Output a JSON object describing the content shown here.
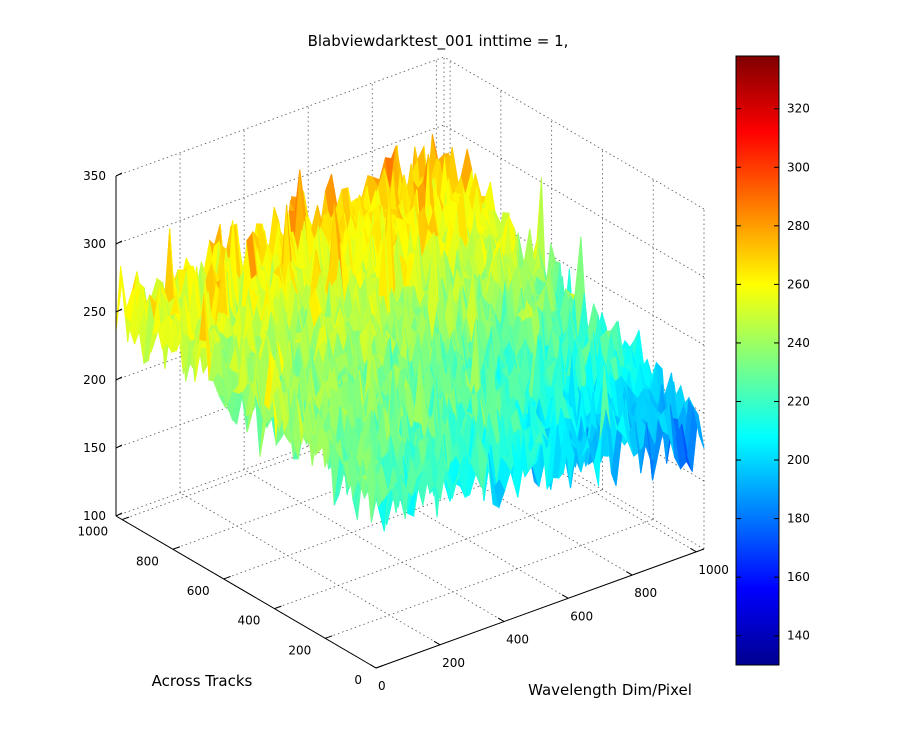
{
  "chart_data": {
    "type": "surface",
    "title": "Blabviewdarktest_001 inttime = 1,",
    "xlabel": "Wavelength Dim/Pixel",
    "ylabel": "Across Tracks",
    "zlabel": "",
    "x_range": [
      0,
      1024
    ],
    "y_range": [
      0,
      1024
    ],
    "z_range": [
      100,
      350
    ],
    "x_ticks": [
      0,
      200,
      400,
      600,
      800,
      1000
    ],
    "y_ticks": [
      0,
      200,
      400,
      600,
      800,
      1000
    ],
    "z_ticks": [
      100,
      150,
      200,
      250,
      300,
      350
    ],
    "x_tick_labels": [
      "0",
      "200",
      "400",
      "600",
      "800",
      "1000"
    ],
    "y_tick_labels": [
      "0",
      "200",
      "400",
      "600",
      "800",
      "1000"
    ],
    "z_tick_labels": [
      "100",
      "150",
      "200",
      "250",
      "300",
      "350"
    ],
    "grid": true,
    "colormap": "jet",
    "colorbar": {
      "range": [
        130,
        338
      ],
      "ticks": [
        140,
        160,
        180,
        200,
        220,
        240,
        260,
        280,
        300,
        320
      ],
      "tick_labels": [
        "140",
        "160",
        "180",
        "200",
        "220",
        "240",
        "260",
        "280",
        "300",
        "320"
      ],
      "placement": "right"
    },
    "surface_trend": {
      "corners": {
        "x0_y0": 225,
        "x1000_y0": 185,
        "x0_y1000": 255,
        "x1000_y1000": 275
      },
      "noise_amplitude": 35
    }
  }
}
